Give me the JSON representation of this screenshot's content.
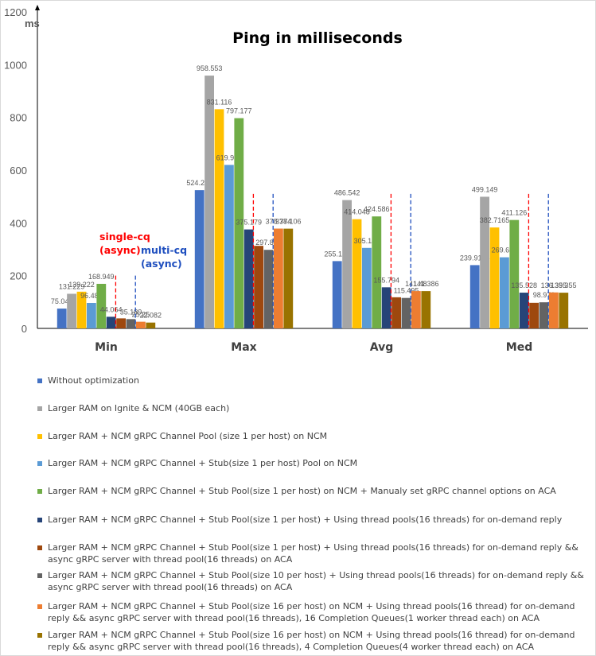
{
  "chart_data": {
    "type": "bar",
    "title": "Ping in milliseconds",
    "ylabel": "ms",
    "ylim": [
      0,
      1200
    ],
    "yticks": [
      0,
      200,
      400,
      600,
      800,
      1000,
      1200
    ],
    "categories": [
      "Min",
      "Max",
      "Avg",
      "Med"
    ],
    "grid": false,
    "legend_position": "bottom",
    "series": [
      {
        "name": "Without optimization",
        "color": "#4472C4",
        "values": [
          75.046,
          524.238,
          255.136,
          239.9125
        ],
        "labels": [
          "75.046",
          "524.238",
          "255.136",
          "239.9125"
        ]
      },
      {
        "name": "Larger RAM on Ignite & NCM (40GB each)",
        "color": "#A5A5A5",
        "values": [
          131.229,
          958.553,
          486.542,
          499.149
        ],
        "labels": [
          "131.229",
          "958.553",
          "486.542",
          "499.149"
        ]
      },
      {
        "name": "Larger RAM + NCM gRPC Channel Pool (size 1 per host) on NCM",
        "color": "#FFC000",
        "values": [
          139.222,
          831.116,
          414.048,
          382.7165
        ],
        "labels": [
          "139.222",
          "831.116",
          "414.048",
          "382.7165"
        ]
      },
      {
        "name": "Larger RAM + NCM gRPC Channel + Stub(size 1 per host) Pool on NCM",
        "color": "#5B9BD5",
        "values": [
          96.481,
          619.954,
          305.141,
          269.618
        ],
        "labels": [
          "96.481",
          "619.954",
          "305.141",
          "269.618"
        ]
      },
      {
        "name": "Larger RAM + NCM gRPC Channel + Stub Pool(size 1 per host) on NCM + Manualy set gRPC channel options on ACA",
        "color": "#70AD47",
        "values": [
          168.949,
          797.177,
          424.586,
          411.126
        ],
        "labels": [
          "168.949",
          "797.177",
          "424.586",
          "411.126"
        ]
      },
      {
        "name": "Larger RAM + NCM gRPC Channel + Stub Pool(size 1 per host) + Using thread pools(16 threads) for on-demand reply",
        "color": "#264478",
        "values": [
          44.064,
          375.179,
          155.794,
          135.528
        ],
        "labels": [
          "44.064",
          "375.179",
          "155.794",
          "135.528"
        ]
      },
      {
        "name": "Larger RAM + NCM gRPC Channel + Stub Pool(size 1 per host) + Using thread pools(16 threads) for on-demand reply && async gRPC server with thread pool(16 threads) on ACA",
        "color": "#9E480E",
        "values": [
          38,
          313,
          118,
          97
        ],
        "labels": [
          "",
          "",
          "",
          ""
        ]
      },
      {
        "name": "Larger RAM + NCM gRPC Channel + Stub Pool(size 10 per host) + Using thread pools(16 threads) for on-demand reply && async gRPC server with thread pool(16 threads) on ACA",
        "color": "#636363",
        "values": [
          35.189,
          297.852,
          115.495,
          98.976
        ],
        "labels": [
          "35.189",
          "297.852",
          "115.495",
          "98.976"
        ]
      },
      {
        "name": "Larger RAM + NCM gRPC Channel + Stub Pool(size 16 per host) on NCM + Using thread pools(16 thread) for on-demand reply && async gRPC server with thread pool(16 threads), 16 Completion Queues(1 worker thread each) on ACA",
        "color": "#ED7D31",
        "values": [
          25.25,
          378.374,
          141.48,
          136.395
        ],
        "labels": [
          "25.25",
          "378.374",
          "141.48",
          "136.395"
        ]
      },
      {
        "name": "Larger RAM + NCM gRPC Channel + Stub Pool(size 16 per host) on NCM + Using thread pools(16 thread) for on-demand reply && async gRPC server with thread pool(16 threads), 4 Completion Queues(4 worker thread each) on ACA",
        "color": "#997300",
        "values": [
          22.082,
          378.106,
          141.386,
          135.355
        ],
        "labels": [
          "22.082",
          "378.106",
          "141.386",
          "135.355"
        ]
      }
    ],
    "annotations": [
      {
        "text_lines": [
          "single-cq",
          "(async)"
        ],
        "color": "#FF0000"
      },
      {
        "text_lines": [
          "multi-cq",
          "(async)"
        ],
        "color": "#1F4FBF"
      }
    ]
  }
}
